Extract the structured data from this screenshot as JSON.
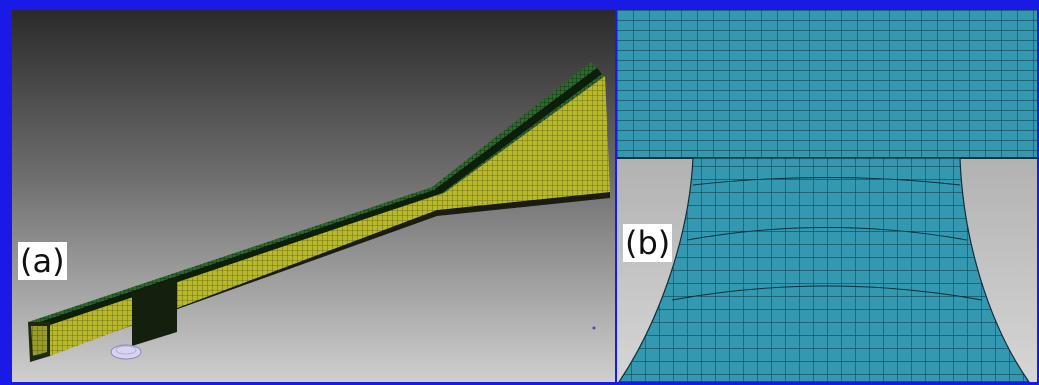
{
  "panels": [
    {
      "label": "(a)"
    },
    {
      "label": "(b)"
    }
  ],
  "colors": {
    "frame": "#1a1ae6",
    "mesh_yellow": "#b5b52a",
    "mesh_green": "#2d6b2a",
    "mesh_teal": "#3499b0",
    "mesh_line": "#0e2e38"
  }
}
